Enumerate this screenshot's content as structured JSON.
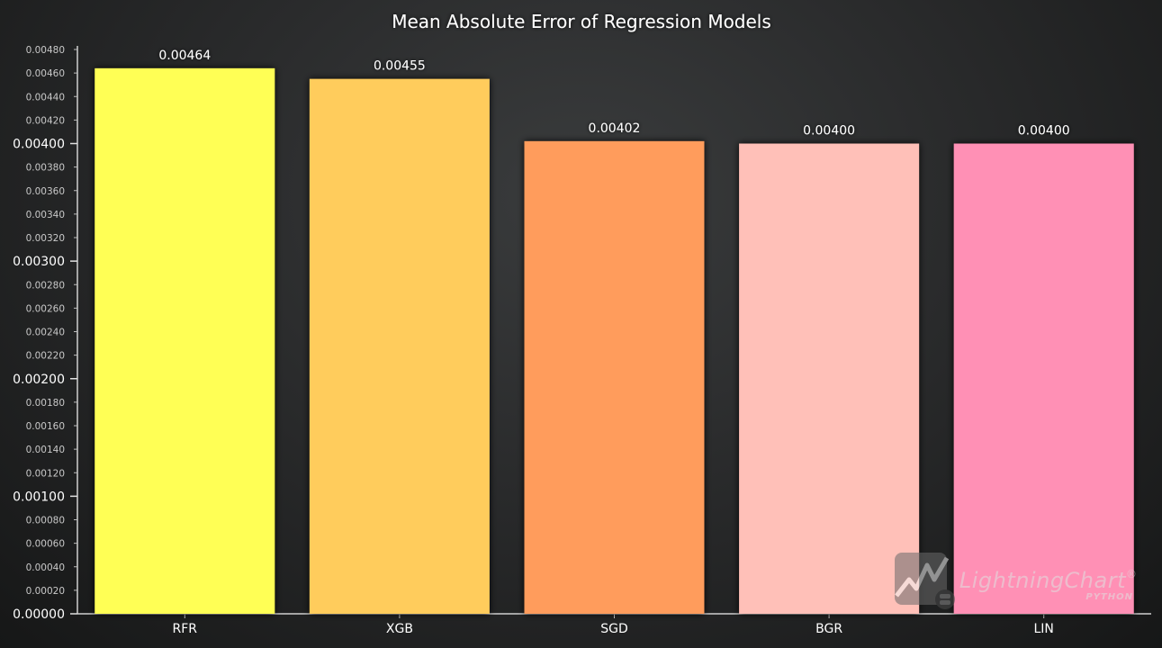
{
  "chart_data": {
    "type": "bar",
    "title": "Mean Absolute Error of Regression Models",
    "categories": [
      "RFR",
      "XGB",
      "SGD",
      "BGR",
      "LIN"
    ],
    "values": [
      0.00464,
      0.00455,
      0.00402,
      0.004,
      0.004
    ],
    "data_labels": [
      "0.00464",
      "0.00455",
      "0.00402",
      "0.00400",
      "0.00400"
    ],
    "bar_colors": [
      "#ffff55",
      "#ffcc5c",
      "#ff9c5c",
      "#ffc0b8",
      "#ff90b5"
    ],
    "xlabel": "",
    "ylabel": "",
    "ylim": [
      0,
      0.0048
    ],
    "major_ticks": [
      "0.00000",
      "0.00100",
      "0.00200",
      "0.00300",
      "0.00400"
    ],
    "minor_ticks": [
      "0.00020",
      "0.00040",
      "0.00060",
      "0.00080",
      "0.00120",
      "0.00140",
      "0.00160",
      "0.00180",
      "0.00220",
      "0.00240",
      "0.00260",
      "0.00280",
      "0.00320",
      "0.00340",
      "0.00360",
      "0.00380",
      "0.00420",
      "0.00440",
      "0.00460",
      "0.00480"
    ],
    "grid": false,
    "legend": "none"
  },
  "watermark": {
    "brand": "LightningChart",
    "registered": "®",
    "sub": "PYTHON",
    "icon": "lightningchart-logo-icon"
  }
}
